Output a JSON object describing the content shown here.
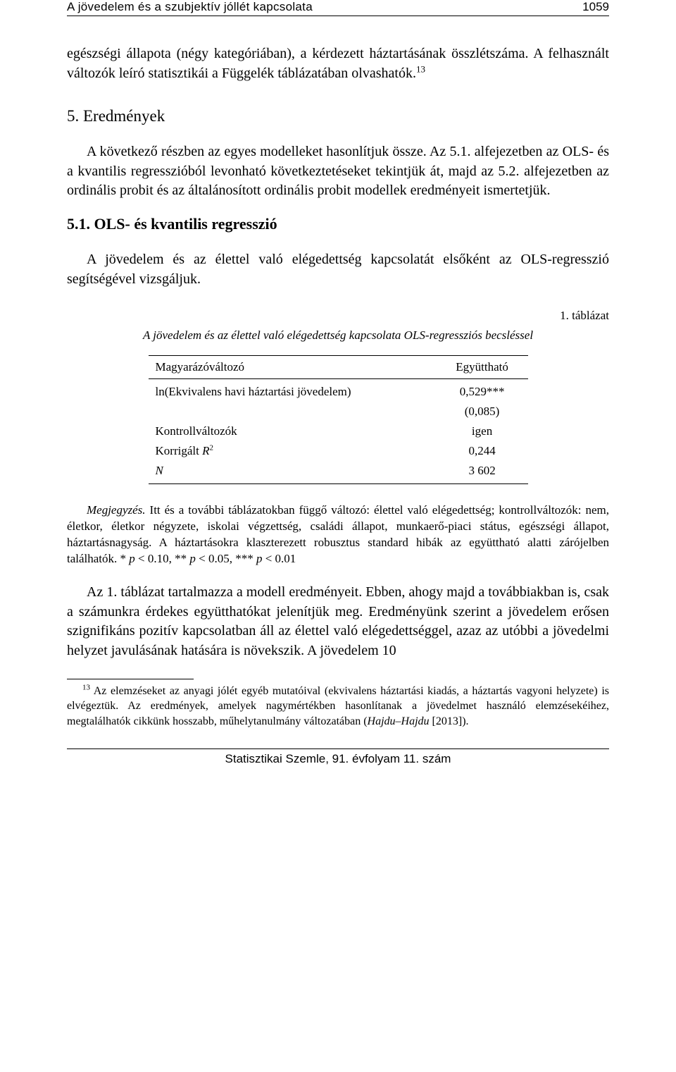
{
  "header": {
    "running_title": "A jövedelem és a szubjektív jóllét kapcsolata",
    "page_number": "1059"
  },
  "body": {
    "para1_prefix": "egészségi állapota (négy kategóriában), a kérdezett háztartásának összlétszáma. A felhasznált változók leíró statisztikái a Függelék táblázatában olvashatók.",
    "para1_sup": "13",
    "section_heading": "5. Eredmények",
    "para2": "A következő részben az egyes modelleket hasonlítjuk össze. Az 5.1. alfejezetben az OLS- és a kvantilis regresszióból levonható következtetéseket tekintjük át, majd az 5.2. alfejezetben az ordinális probit és az általánosított ordinális probit modellek eredményeit ismertetjük.",
    "subsection_heading": "5.1. OLS- és kvantilis regresszió",
    "para3": "A jövedelem és az élettel való elégedettség kapcsolatát elsőként az OLS-regresszió segítségével vizsgáljuk.",
    "para4": "Az 1. táblázat tartalmazza a modell eredményeit. Ebben, ahogy majd a továbbiakban is, csak a számunkra érdekes együtthatókat jelenítjük meg. Eredményünk szerint a jövedelem erősen szignifikáns pozitív kapcsolatban áll az élettel való elégedettséggel, azaz az utóbbi a jövedelmi helyzet javulásának hatására is növekszik. A jövedelem 10"
  },
  "table": {
    "label": "1. táblázat",
    "caption": "A jövedelem és az élettel való elégedettség kapcsolata OLS-regressziós becsléssel",
    "col_headers": [
      "Magyarázóváltozó",
      "Együttható"
    ],
    "rows": [
      {
        "label": "ln(Ekvivalens havi háztartási jövedelem)",
        "value": "0,529***"
      },
      {
        "label": "",
        "value": "(0,085)"
      },
      {
        "label": "Kontrollváltozók",
        "value": "igen"
      },
      {
        "label_prefix": "Korrigált ",
        "label_italic": "R",
        "label_sup": "2",
        "value": "0,244"
      },
      {
        "label_italic": "N",
        "value": "3 602"
      }
    ]
  },
  "table_note": {
    "lead_italic": "Megjegyzés.",
    "text_part1": " Itt és a további táblázatokban függő változó: élettel való elégedettség; kontrollváltozók: nem, életkor, életkor négyzete, iskolai végzettség, családi állapot, munkaerő-piaci státus, egészségi állapot, háztartásnagyság. A háztartásokra klaszterezett robusztus standard hibák az együttható alatti zárójelben találhatók. * ",
    "p_it_1": "p",
    "text_part2": " < 0.10, ** ",
    "p_it_2": "p",
    "text_part3": " < 0.05, *** ",
    "p_it_3": "p",
    "text_part4": " < 0.01"
  },
  "footnote": {
    "marker": "13",
    "text_part1": " Az elemzéseket az anyagi jólét egyéb mutatóival (ekvivalens háztartási kiadás, a háztartás vagyoni helyzete) is elvégeztük. Az eredmények, amelyek nagymértékben hasonlítanak a jövedelmet használó elemzésekéihez, megtalálhatók cikkünk hosszabb, műhelytanulmány változatában (",
    "citation_italic": "Hajdu–Hajdu",
    "text_part2": " [2013])."
  },
  "footer": {
    "text": "Statisztikai Szemle, 91. évfolyam 11. szám"
  }
}
